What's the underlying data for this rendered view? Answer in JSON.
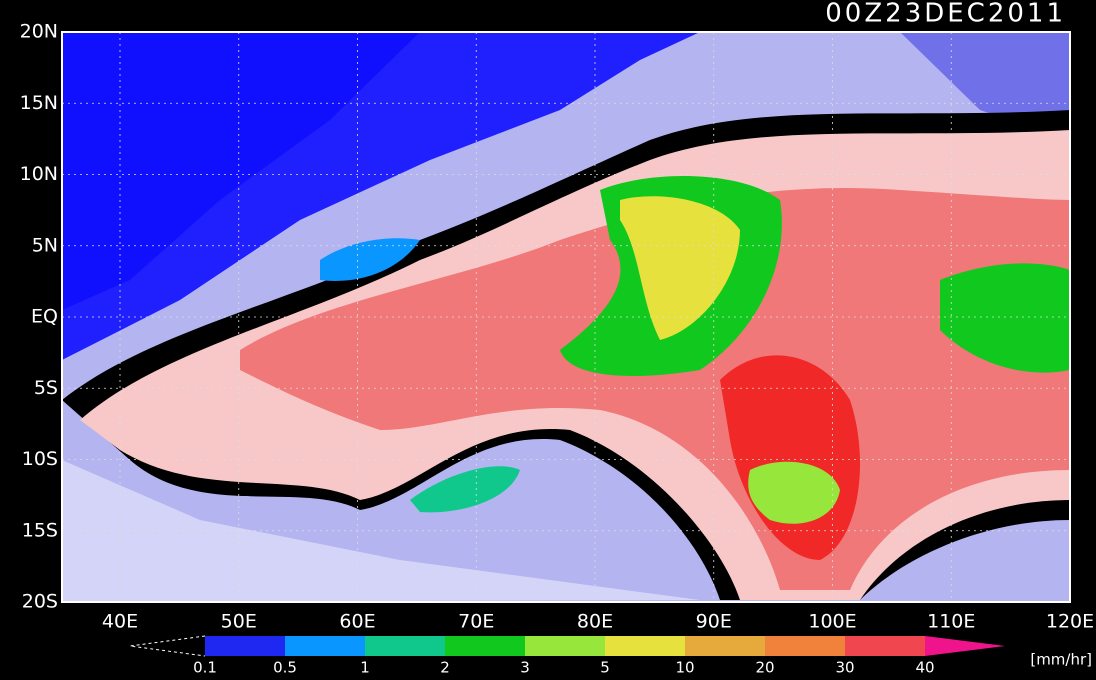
{
  "title": "00Z23DEC2011",
  "lat_labels": [
    "20N",
    "15N",
    "10N",
    "5N",
    "EQ",
    "5S",
    "10S",
    "15S",
    "20S"
  ],
  "lon_labels": [
    "40E",
    "50E",
    "60E",
    "70E",
    "80E",
    "90E",
    "100E",
    "110E",
    "120E"
  ],
  "colorbar": {
    "levels": [
      0.1,
      0.5,
      1,
      2,
      3,
      5,
      10,
      20,
      30,
      40
    ],
    "colors": [
      "#1e28f0",
      "#0a96ff",
      "#10c88c",
      "#10c81e",
      "#96e63c",
      "#e6e13c",
      "#e6aa3c",
      "#f0823c",
      "#f04650"
    ],
    "over_color": "#f0148c",
    "units": "[mm/hr]"
  }
}
